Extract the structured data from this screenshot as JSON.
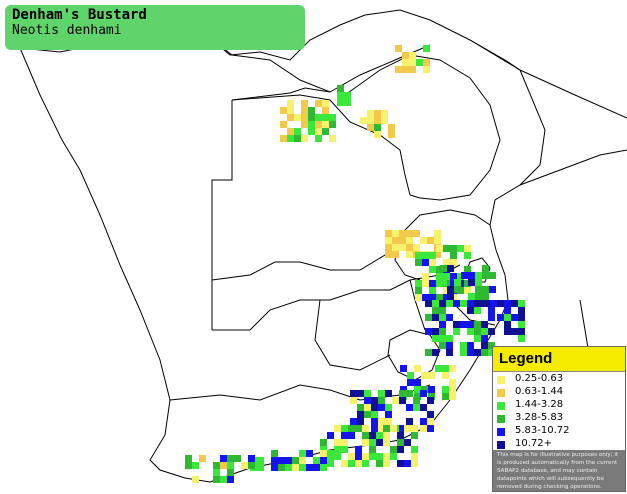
{
  "species": {
    "common_name": "Denham's Bustard",
    "scientific_name": "Neotis denhami"
  },
  "legend": {
    "title": "Legend",
    "items": [
      {
        "label": "0.25-0.63",
        "color": "#f7f26b"
      },
      {
        "label": "0.63-1.44",
        "color": "#f2c94a"
      },
      {
        "label": "1.44-3.28",
        "color": "#39e83a"
      },
      {
        "label": "3.28-5.83",
        "color": "#2fb832"
      },
      {
        "label": "5.83-10.72",
        "color": "#1414ee"
      },
      {
        "label": "10.72+",
        "color": "#101094"
      }
    ],
    "note": "This map is for illustrative purposes only; it is produced automatically from the current SABAP2 database, and may contain datapoints which will subsequently be removed during checking operations."
  },
  "colors": {
    "land": "#ffffff",
    "border": "#000000",
    "title_bg": "#5fd46a",
    "legend_header": "#f5ec00"
  }
}
